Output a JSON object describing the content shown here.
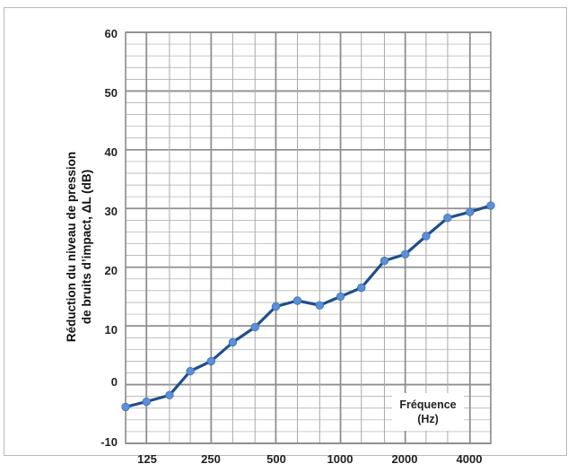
{
  "chart_data": {
    "type": "line",
    "ylabel_lines": [
      "Réduction du niveau de pression",
      "de bruits d’impact, ΔL (dB)"
    ],
    "annotation_lines": [
      "Fréquence",
      "(Hz)"
    ],
    "x_tick_labels": [
      "125",
      "250",
      "500",
      "1000",
      "2000",
      "4000"
    ],
    "y_tick_labels": [
      "60",
      "50",
      "40",
      "30",
      "20",
      "10",
      "0",
      "-10"
    ],
    "ylim": [
      -10,
      60
    ],
    "grid": true,
    "x": [
      100,
      125,
      160,
      200,
      250,
      315,
      400,
      500,
      630,
      800,
      1000,
      1250,
      1600,
      2000,
      2500,
      3150,
      4000,
      5000
    ],
    "series": [
      {
        "values": [
          -3.8,
          -2.9,
          -1.8,
          2.3,
          4.0,
          7.2,
          9.8,
          13.3,
          14.3,
          13.5,
          15.0,
          16.5,
          21.1,
          22.2,
          25.3,
          28.4,
          29.4,
          30.5
        ]
      }
    ],
    "colors": {
      "line": "#1f4e8c",
      "marker": "#5b8fd6",
      "grid": "#a9a9a9",
      "axis": "#8a8a8a"
    }
  }
}
